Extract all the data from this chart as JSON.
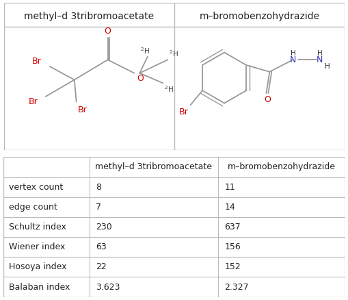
{
  "col1_name": "methyl–d 3tribromoacetate",
  "col2_name": "m–bromobenzohydrazide",
  "row_labels": [
    "vertex count",
    "edge count",
    "Schultz index",
    "Wiener index",
    "Hosoya index",
    "Balaban index"
  ],
  "col1_values": [
    "8",
    "7",
    "230",
    "63",
    "22",
    "3.623"
  ],
  "col2_values": [
    "11",
    "14",
    "637",
    "156",
    "152",
    "2.327"
  ],
  "bg_color": "#ffffff",
  "grid_color": "#bbbbbb",
  "text_color": "#222222",
  "font_size": 9,
  "header_font_size": 10,
  "red_color": "#cc0000",
  "blue_color": "#3333bb",
  "bond_color": "#999999",
  "bond_lw": 1.3
}
